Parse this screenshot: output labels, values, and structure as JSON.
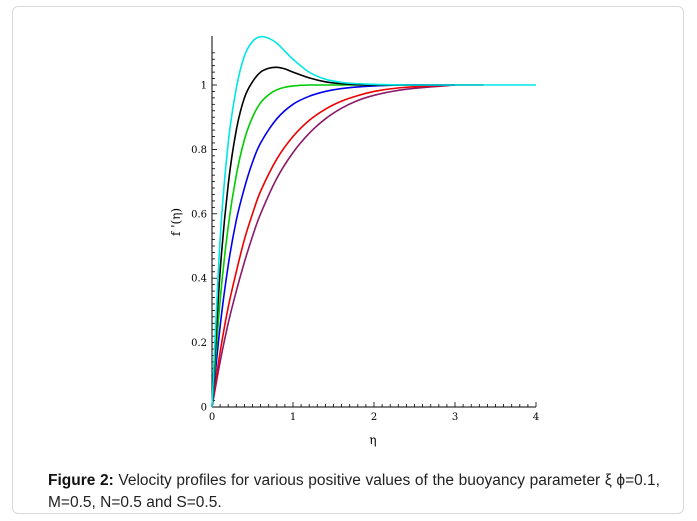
{
  "caption": {
    "label": "Figure 2:",
    "text": " Velocity profiles for various positive values of the buoyancy parameter ξ ϕ=0.1, M=0.5, N=0.5 and S=0.5."
  },
  "chart_data": {
    "type": "line",
    "title": "",
    "xlabel": "η",
    "ylabel": "f '(η)",
    "xlim": [
      0,
      4
    ],
    "ylim": [
      0,
      1.15
    ],
    "xticks": [
      "0",
      "1",
      "2",
      "3",
      "4"
    ],
    "yticks": [
      "0",
      "0.2",
      "0.4",
      "0.6",
      "0.8",
      "1"
    ],
    "grid": false,
    "series": [
      {
        "color": "#00e5e5",
        "x": [
          0,
          0.1,
          0.2,
          0.3,
          0.4,
          0.5,
          0.6,
          0.7,
          0.8,
          0.9,
          1.0,
          1.2,
          1.4,
          1.6,
          1.8,
          2.0,
          2.4,
          3.0,
          4.0
        ],
        "y": [
          0,
          0.52,
          0.82,
          0.99,
          1.09,
          1.135,
          1.15,
          1.145,
          1.13,
          1.105,
          1.08,
          1.04,
          1.018,
          1.008,
          1.004,
          1.002,
          1.0,
          1.0,
          1.0
        ]
      },
      {
        "color": "#000000",
        "x": [
          0,
          0.1,
          0.2,
          0.3,
          0.4,
          0.5,
          0.6,
          0.7,
          0.8,
          0.9,
          1.0,
          1.2,
          1.4,
          1.6,
          1.8,
          2.0,
          2.4,
          3.0,
          3.35
        ],
        "y": [
          0,
          0.42,
          0.69,
          0.86,
          0.96,
          1.01,
          1.04,
          1.052,
          1.055,
          1.05,
          1.04,
          1.022,
          1.01,
          1.004,
          1.001,
          1.0,
          1.0,
          1.0,
          1.0
        ]
      },
      {
        "color": "#00cc00",
        "x": [
          0,
          0.1,
          0.2,
          0.3,
          0.4,
          0.5,
          0.6,
          0.7,
          0.8,
          0.9,
          1.0,
          1.1,
          1.2,
          1.4,
          1.6,
          1.8,
          2.0,
          2.4
        ],
        "y": [
          0,
          0.33,
          0.56,
          0.72,
          0.83,
          0.9,
          0.945,
          0.97,
          0.985,
          0.993,
          0.997,
          0.999,
          1.0,
          1.0,
          1.0,
          1.0,
          1.0,
          1.0
        ]
      },
      {
        "color": "#0000ee",
        "x": [
          0,
          0.1,
          0.2,
          0.3,
          0.4,
          0.5,
          0.6,
          0.8,
          1.0,
          1.2,
          1.4,
          1.6,
          1.8,
          2.0,
          2.2,
          2.4,
          2.6,
          3.0
        ],
        "y": [
          0,
          0.25,
          0.44,
          0.58,
          0.68,
          0.76,
          0.82,
          0.895,
          0.94,
          0.965,
          0.98,
          0.989,
          0.994,
          0.997,
          0.999,
          1.0,
          1.0,
          1.0
        ]
      },
      {
        "color": "#ee0000",
        "x": [
          0,
          0.1,
          0.2,
          0.3,
          0.4,
          0.5,
          0.6,
          0.8,
          1.0,
          1.2,
          1.4,
          1.6,
          1.8,
          2.0,
          2.2,
          2.4,
          2.6,
          3.0
        ],
        "y": [
          0,
          0.17,
          0.31,
          0.42,
          0.52,
          0.6,
          0.67,
          0.77,
          0.84,
          0.89,
          0.925,
          0.95,
          0.967,
          0.98,
          0.988,
          0.993,
          0.996,
          1.0
        ]
      },
      {
        "color": "#8b1a6b",
        "x": [
          0,
          0.1,
          0.2,
          0.3,
          0.4,
          0.5,
          0.6,
          0.8,
          1.0,
          1.2,
          1.4,
          1.6,
          1.8,
          2.0,
          2.2,
          2.4,
          2.6,
          2.8,
          3.0
        ],
        "y": [
          0,
          0.14,
          0.26,
          0.36,
          0.45,
          0.53,
          0.6,
          0.71,
          0.79,
          0.85,
          0.895,
          0.928,
          0.952,
          0.968,
          0.979,
          0.987,
          0.992,
          0.996,
          1.0
        ]
      }
    ]
  }
}
